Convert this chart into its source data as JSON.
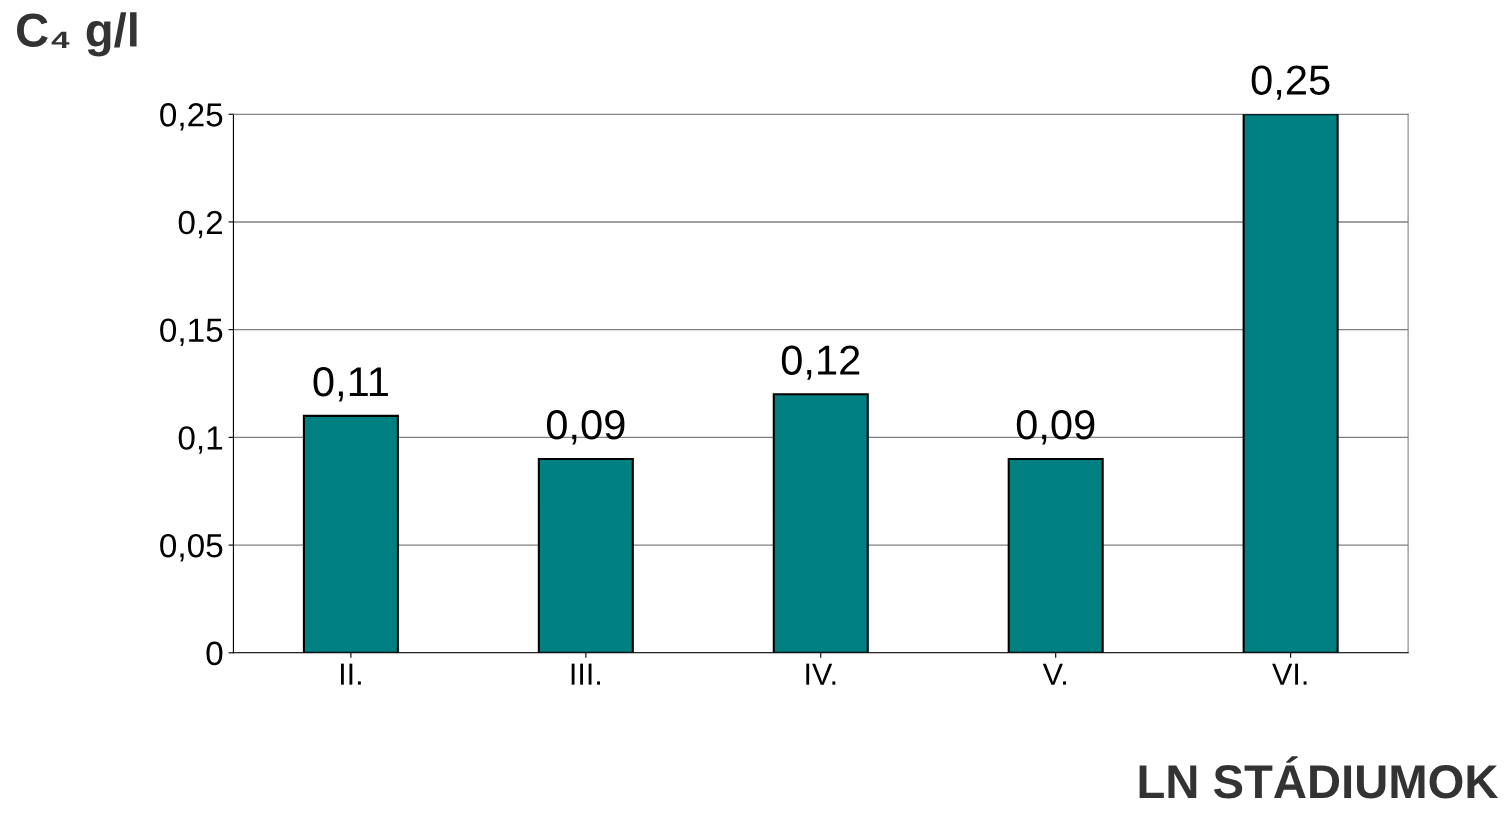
{
  "chart_data": {
    "type": "bar",
    "ylabel": "C₄ g/l",
    "xlabel": "LN STÁDIUMOK",
    "categories": [
      "II.",
      "III.",
      "IV.",
      "V.",
      "VI."
    ],
    "values": [
      0.11,
      0.09,
      0.12,
      0.09,
      0.25
    ],
    "value_labels": [
      "0,11",
      "0,09",
      "0,12",
      "0,09",
      "0,25"
    ],
    "color": "#008080",
    "ylim": [
      0,
      0.25
    ],
    "yticks": [
      {
        "value": 0,
        "label": "0"
      },
      {
        "value": 0.05,
        "label": "0,05"
      },
      {
        "value": 0.1,
        "label": "0,1"
      },
      {
        "value": 0.15,
        "label": "0,15"
      },
      {
        "value": 0.2,
        "label": "0,2"
      },
      {
        "value": 0.25,
        "label": "0,25"
      }
    ],
    "grid": "y"
  }
}
